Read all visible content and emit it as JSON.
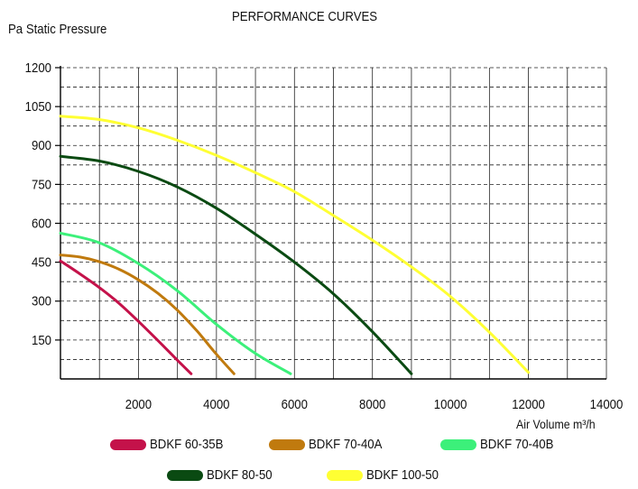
{
  "chart_data": {
    "type": "line",
    "title": "PERFORMANCE CURVES",
    "ylabel": "Pa  Static Pressure",
    "xlabel": "Air  Volume  m³/h",
    "xlim": [
      0,
      14000
    ],
    "ylim": [
      0,
      1200
    ],
    "x_ticks": [
      2000,
      4000,
      6000,
      8000,
      10000,
      12000,
      14000
    ],
    "y_ticks": [
      150,
      300,
      450,
      600,
      750,
      900,
      1050,
      1200
    ],
    "grid": true,
    "legend_position": "bottom",
    "series": [
      {
        "name": "BDKF 60-35B",
        "color": "#c4124a",
        "x": [
          0,
          500,
          1000,
          1500,
          2000,
          2500,
          3000,
          3350
        ],
        "y": [
          455,
          405,
          352,
          292,
          222,
          148,
          72,
          20
        ]
      },
      {
        "name": "BDKF 70-40A",
        "color": "#c07a0e",
        "x": [
          0,
          500,
          1000,
          1500,
          2000,
          2500,
          3000,
          3500,
          4000,
          4450
        ],
        "y": [
          478,
          470,
          452,
          423,
          382,
          330,
          265,
          185,
          95,
          20
        ]
      },
      {
        "name": "BDKF 70-40B",
        "color": "#3cf07a",
        "x": [
          0,
          1000,
          2000,
          3000,
          4000,
          5000,
          5900
        ],
        "y": [
          562,
          525,
          445,
          340,
          210,
          98,
          20
        ]
      },
      {
        "name": "BDKF 80-50",
        "color": "#0a4a12",
        "x": [
          0,
          1000,
          2000,
          3000,
          4000,
          5000,
          6000,
          7000,
          8000,
          9000
        ],
        "y": [
          858,
          840,
          800,
          740,
          658,
          558,
          450,
          328,
          182,
          20
        ]
      },
      {
        "name": "BDKF 100-50",
        "color": "#ffff33",
        "x": [
          0,
          1000,
          2000,
          3000,
          4000,
          5000,
          6000,
          7000,
          8000,
          9000,
          10000,
          11000,
          12000
        ],
        "y": [
          1013,
          1000,
          968,
          920,
          862,
          795,
          722,
          630,
          535,
          432,
          318,
          180,
          25
        ]
      }
    ]
  }
}
